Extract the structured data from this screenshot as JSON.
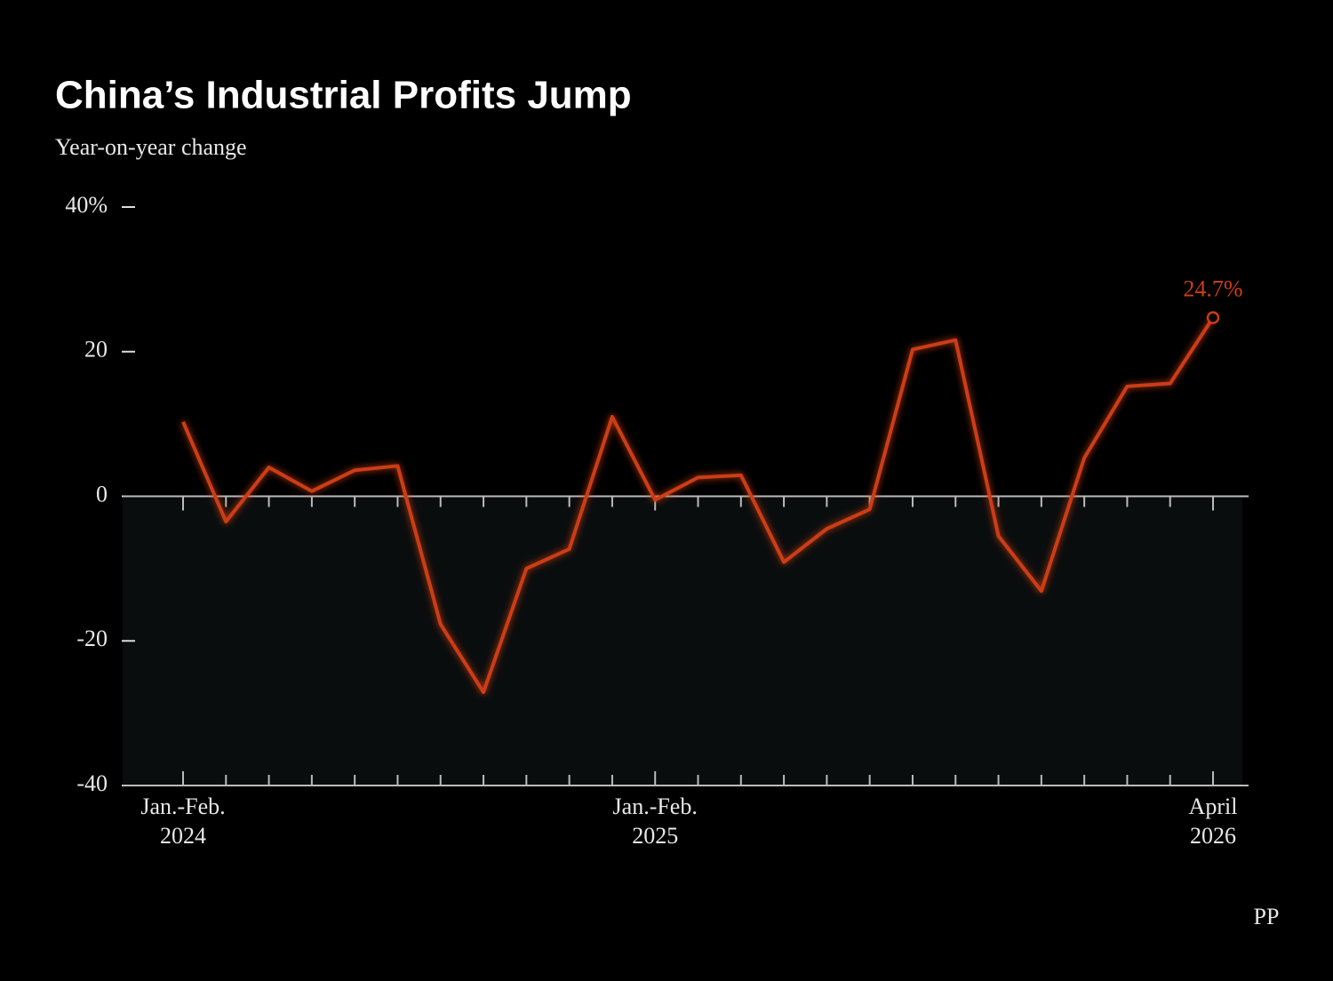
{
  "chart_data": {
    "type": "line",
    "title": "China’s Industrial Profits Jump",
    "subtitle": "Year-on-year change",
    "categories": [
      [
        "Jan.-Feb.",
        "2024"
      ],
      null,
      null,
      null,
      null,
      null,
      null,
      null,
      null,
      null,
      null,
      [
        "Jan.-Feb.",
        "2025"
      ],
      null,
      null,
      null,
      null,
      null,
      null,
      null,
      null,
      null,
      null,
      null,
      null,
      [
        "April",
        "2026"
      ]
    ],
    "series": [
      {
        "color": "#cc3d12",
        "values": [
          10.3,
          -3.5,
          4.0,
          0.7,
          3.6,
          4.2,
          -17.7,
          -27.1,
          -10.0,
          -7.3,
          11.0,
          -0.5,
          2.6,
          2.9,
          -9.1,
          -4.5,
          -1.8,
          20.3,
          21.6,
          -5.5,
          -13.1,
          5.3,
          15.2,
          15.6,
          24.7
        ],
        "value_labels": [
          null,
          null,
          null,
          null,
          null,
          null,
          null,
          null,
          null,
          null,
          null,
          null,
          null,
          null,
          null,
          null,
          null,
          null,
          null,
          null,
          null,
          null,
          null,
          null,
          "24.7%"
        ]
      }
    ],
    "ylim": [
      -40,
      40
    ],
    "yticks": [
      -40,
      -20,
      0,
      20,
      {
        "value": 40,
        "label": "40%"
      }
    ],
    "shade_below_zero": true,
    "logo": "PP"
  }
}
